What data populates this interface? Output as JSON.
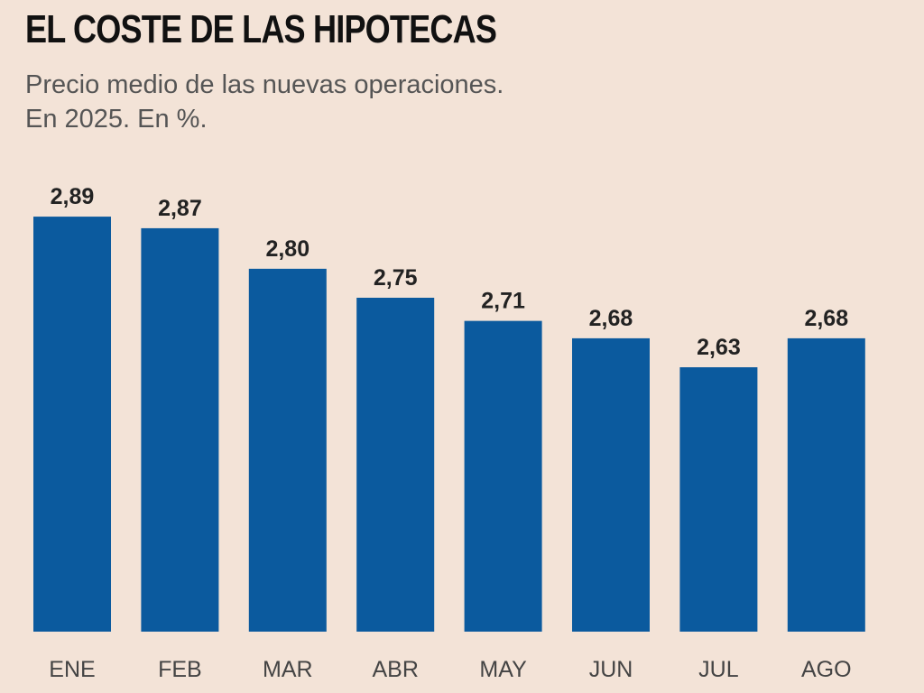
{
  "title": "EL COSTE DE LAS HIPOTECAS",
  "subtitle_line1": "Precio medio de las nuevas operaciones.",
  "subtitle_line2": "En 2025. En %.",
  "chart_data": {
    "type": "bar",
    "title": "EL COSTE DE LAS HIPOTECAS",
    "subtitle": "Precio medio de las nuevas operaciones. En 2025. En %.",
    "categories": [
      "ENE",
      "FEB",
      "MAR",
      "ABR",
      "MAY",
      "JUN",
      "JUL",
      "AGO"
    ],
    "values": [
      2.89,
      2.87,
      2.8,
      2.75,
      2.71,
      2.68,
      2.63,
      2.68
    ],
    "value_labels": [
      "2,89",
      "2,87",
      "2,80",
      "2,75",
      "2,71",
      "2,68",
      "2,63",
      "2,68"
    ],
    "xlabel": "",
    "ylabel": "",
    "grid": false,
    "bar_color": "#0b5a9e"
  }
}
